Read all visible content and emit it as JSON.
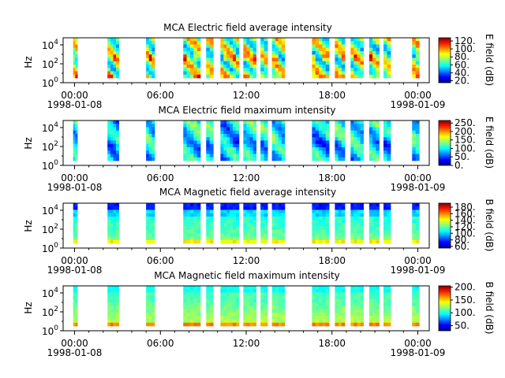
{
  "chart_data": [
    {
      "type": "heatmap",
      "title": "MCA  Electric field average intensity",
      "ylabel": "Hz",
      "colorbar_label": "E field (dB)",
      "colorbar_ticks": [
        "20.",
        "40.",
        "60.",
        "80.",
        "100.",
        "120."
      ],
      "colorbar_range": [
        15,
        128
      ],
      "y_ticks": [
        "10^0",
        "10^2",
        "10^4"
      ],
      "ylim_hz": [
        1,
        56000
      ],
      "x_ticks": [
        "00:00",
        "06:00",
        "12:00",
        "18:00",
        "00:00"
      ],
      "x_dates": [
        "1998-01-08",
        "1998-01-09"
      ],
      "xlim_hours": [
        -0.8,
        24.8
      ],
      "pattern": "electric_avg",
      "data_segments_hours": [
        [
          -0.1,
          0.2
        ],
        [
          2.3,
          3.1
        ],
        [
          5.0,
          5.6
        ],
        [
          7.6,
          8.8
        ],
        [
          9.2,
          9.7
        ],
        [
          10.2,
          11.5
        ],
        [
          11.8,
          12.7
        ],
        [
          13.0,
          13.5
        ],
        [
          13.8,
          14.7
        ],
        [
          16.6,
          17.8
        ],
        [
          18.2,
          18.9
        ],
        [
          19.3,
          20.2
        ],
        [
          20.6,
          21.3
        ],
        [
          21.6,
          22.1
        ],
        [
          23.6,
          24.1
        ]
      ]
    },
    {
      "type": "heatmap",
      "title": "MCA  Electric field maximum intensity",
      "ylabel": "Hz",
      "colorbar_label": "E field (dB)",
      "colorbar_ticks": [
        "0.",
        "50.",
        "100.",
        "150.",
        "200.",
        "250."
      ],
      "colorbar_range": [
        0,
        265
      ],
      "y_ticks": [
        "10^0",
        "10^2",
        "10^4"
      ],
      "ylim_hz": [
        1,
        56000
      ],
      "x_ticks": [
        "00:00",
        "06:00",
        "12:00",
        "18:00",
        "00:00"
      ],
      "x_dates": [
        "1998-01-08",
        "1998-01-09"
      ],
      "xlim_hours": [
        -0.8,
        24.8
      ],
      "pattern": "electric_max",
      "data_segments_hours": [
        [
          -0.1,
          0.2
        ],
        [
          2.3,
          3.1
        ],
        [
          5.0,
          5.6
        ],
        [
          7.6,
          8.8
        ],
        [
          9.2,
          9.7
        ],
        [
          10.2,
          11.5
        ],
        [
          11.8,
          12.7
        ],
        [
          13.0,
          13.5
        ],
        [
          13.8,
          14.7
        ],
        [
          16.6,
          17.8
        ],
        [
          18.2,
          18.9
        ],
        [
          19.3,
          20.2
        ],
        [
          20.6,
          21.3
        ],
        [
          21.6,
          22.1
        ],
        [
          23.6,
          24.1
        ]
      ]
    },
    {
      "type": "heatmap",
      "title": "MCA  Magnetic field average intensity",
      "ylabel": "Hz",
      "colorbar_label": "B field (dB)",
      "colorbar_ticks": [
        "60.",
        "80.",
        "100.",
        "120.",
        "140.",
        "160.",
        "180."
      ],
      "colorbar_range": [
        55,
        192
      ],
      "y_ticks": [
        "10^0",
        "10^2",
        "10^4"
      ],
      "ylim_hz": [
        1,
        56000
      ],
      "x_ticks": [
        "00:00",
        "06:00",
        "12:00",
        "18:00",
        "00:00"
      ],
      "x_dates": [
        "1998-01-08",
        "1998-01-09"
      ],
      "xlim_hours": [
        -0.8,
        24.8
      ],
      "pattern": "magnetic_avg",
      "data_segments_hours": [
        [
          -0.1,
          0.2
        ],
        [
          2.3,
          3.1
        ],
        [
          5.0,
          5.6
        ],
        [
          7.6,
          8.8
        ],
        [
          9.2,
          9.7
        ],
        [
          10.2,
          11.5
        ],
        [
          11.8,
          12.7
        ],
        [
          13.0,
          13.5
        ],
        [
          13.8,
          14.7
        ],
        [
          16.6,
          17.8
        ],
        [
          18.2,
          18.9
        ],
        [
          19.3,
          20.2
        ],
        [
          20.6,
          21.3
        ],
        [
          21.6,
          22.1
        ],
        [
          23.6,
          24.1
        ]
      ]
    },
    {
      "type": "heatmap",
      "title": "MCA  Magnetic field maximum intensity",
      "ylabel": "Hz",
      "colorbar_label": "B field (dB)",
      "colorbar_ticks": [
        "50.",
        "100.",
        "150.",
        "200."
      ],
      "colorbar_range": [
        30,
        205
      ],
      "y_ticks": [
        "10^0",
        "10^2",
        "10^4"
      ],
      "ylim_hz": [
        1,
        56000
      ],
      "x_ticks": [
        "00:00",
        "06:00",
        "12:00",
        "18:00",
        "00:00"
      ],
      "x_dates": [
        "1998-01-08",
        "1998-01-09"
      ],
      "xlim_hours": [
        -0.8,
        24.8
      ],
      "pattern": "magnetic_max",
      "data_segments_hours": [
        [
          -0.1,
          0.2
        ],
        [
          2.3,
          3.1
        ],
        [
          5.0,
          5.6
        ],
        [
          7.6,
          8.8
        ],
        [
          9.2,
          9.7
        ],
        [
          10.2,
          11.5
        ],
        [
          11.8,
          12.7
        ],
        [
          13.0,
          13.5
        ],
        [
          13.8,
          14.7
        ],
        [
          16.6,
          17.8
        ],
        [
          18.2,
          18.9
        ],
        [
          19.3,
          20.2
        ],
        [
          20.6,
          21.3
        ],
        [
          21.6,
          22.1
        ],
        [
          23.6,
          24.1
        ]
      ]
    }
  ]
}
